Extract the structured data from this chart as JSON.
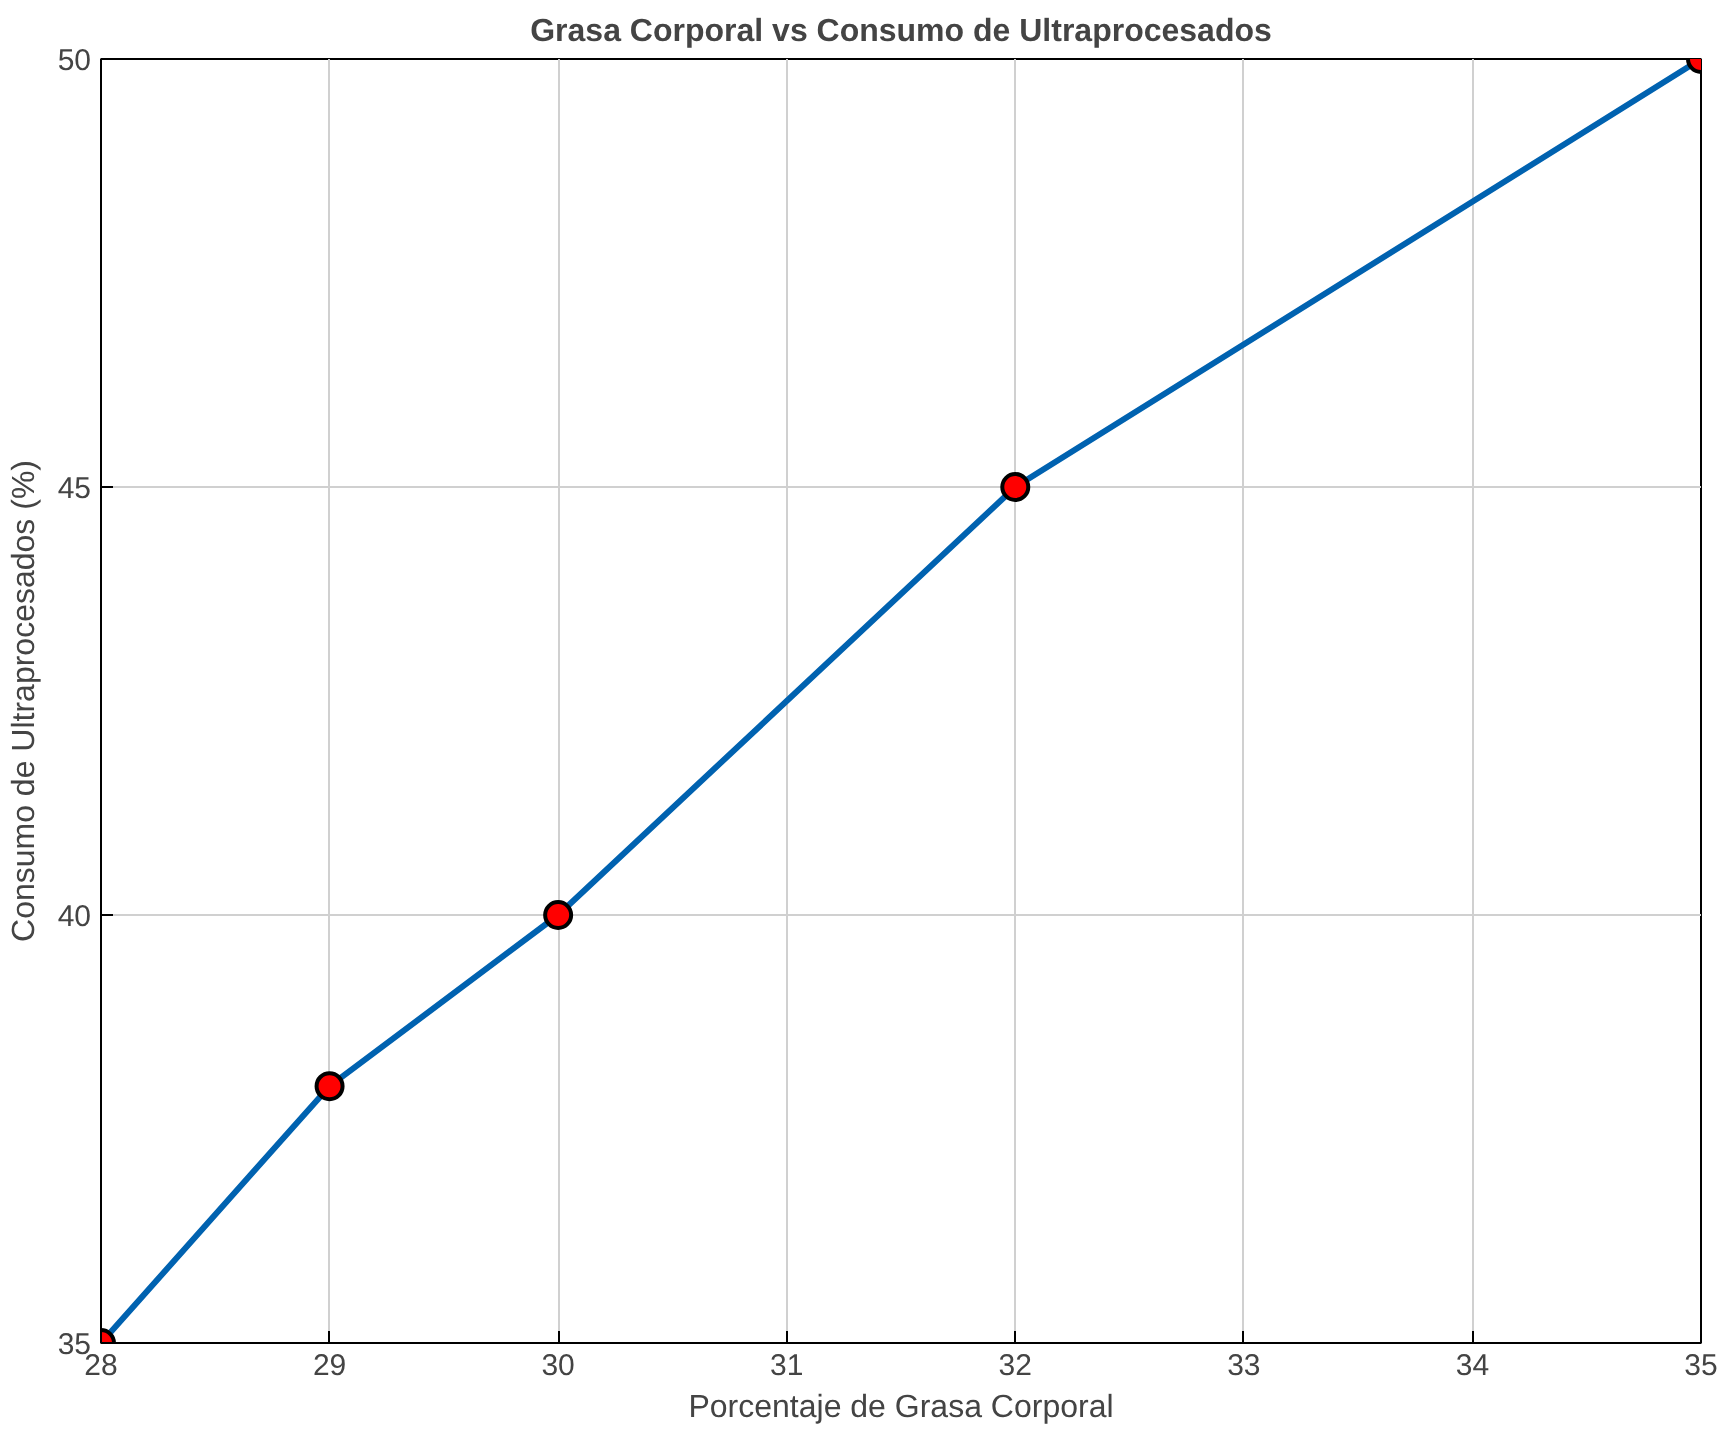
{
  "chart_data": {
    "type": "line",
    "title": "Grasa Corporal vs Consumo de Ultraprocesados",
    "xlabel": "Porcentaje de Grasa Corporal",
    "ylabel": "Consumo de Ultraprocesados (%)",
    "x": [
      28,
      29,
      30,
      32,
      35
    ],
    "series": [
      {
        "color": "#0062b0",
        "values": [
          35,
          38,
          40,
          45,
          50
        ],
        "colors": [
          "#ff0000",
          "#ff0000",
          "#ff0000",
          "#ff0000",
          "#ff0000"
        ]
      }
    ],
    "xlim": [
      28,
      35
    ],
    "ylim": [
      35,
      50
    ],
    "xticks": [
      28,
      29,
      30,
      31,
      32,
      33,
      34,
      35
    ],
    "yticks": [
      35,
      40,
      45,
      50
    ],
    "grid": true,
    "marker": "circle",
    "line_style": "solid"
  }
}
